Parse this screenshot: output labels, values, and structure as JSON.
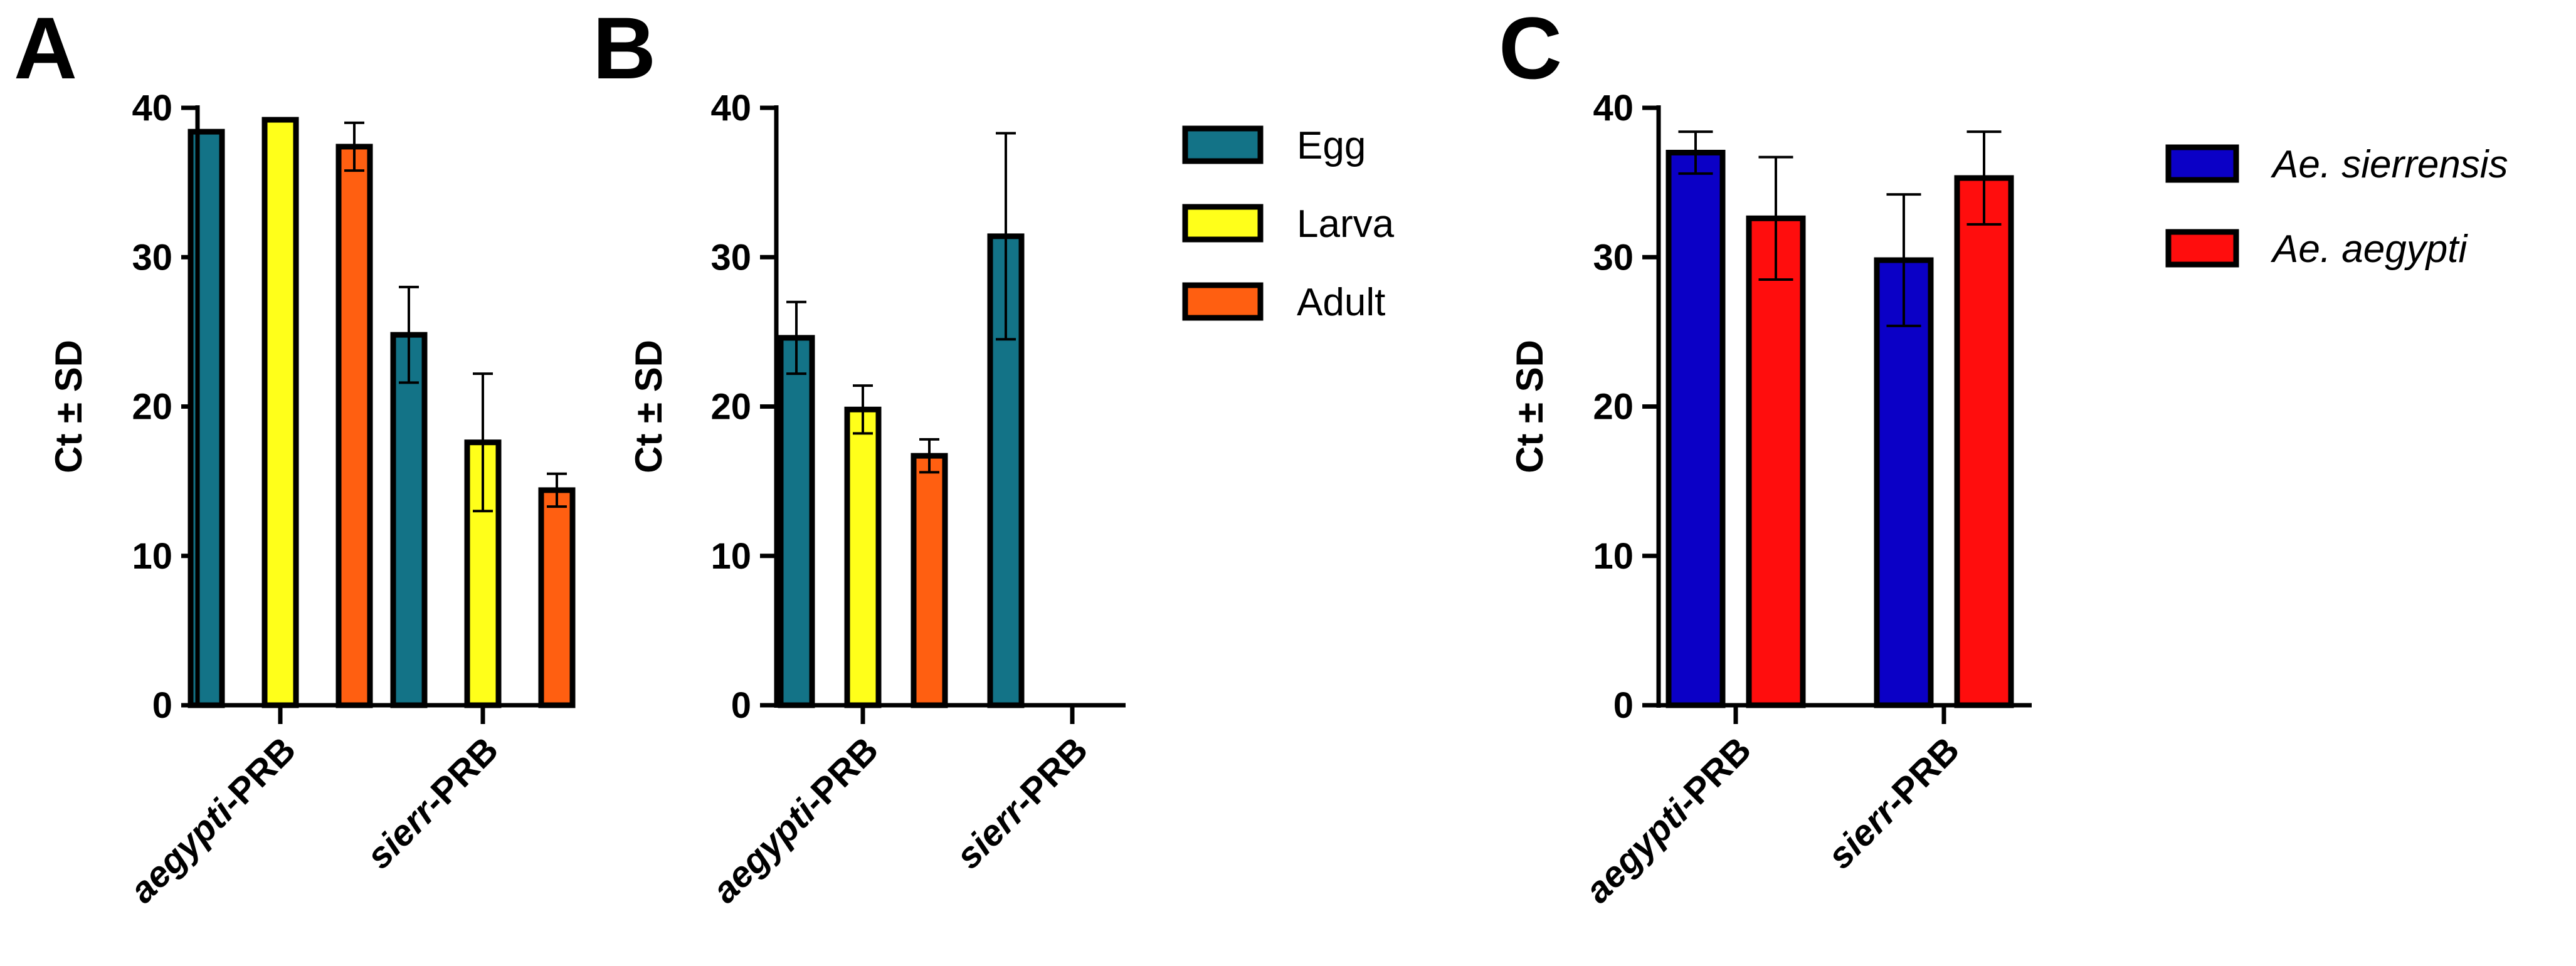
{
  "chart_data": [
    {
      "panel": "A",
      "type": "bar",
      "ylabel": "Ct ± SD",
      "ylim": [
        0,
        40
      ],
      "yticks": [
        "0",
        "10",
        "20",
        "30",
        "40"
      ],
      "categories": [
        {
          "italic": "aegypti",
          "rest": "-PRB"
        },
        {
          "italic": "sierr",
          "rest": "-PRB"
        }
      ],
      "series": [
        {
          "name": "Egg",
          "color": "#137387",
          "values": [
            38.4,
            24.8
          ],
          "errors": [
            0,
            3.2
          ]
        },
        {
          "name": "Larva",
          "color": "#ffff1a",
          "values": [
            39.2,
            17.6
          ],
          "errors": [
            0,
            4.6
          ]
        },
        {
          "name": "Adult",
          "color": "#ff5f11",
          "values": [
            37.4,
            14.4
          ],
          "errors": [
            1.6,
            1.1
          ]
        }
      ]
    },
    {
      "panel": "B",
      "type": "bar",
      "ylabel": "Ct ± SD",
      "ylim": [
        0,
        40
      ],
      "yticks": [
        "0",
        "10",
        "20",
        "30",
        "40"
      ],
      "categories": [
        {
          "italic": "aegypti",
          "rest": "-PRB"
        },
        {
          "italic": "sierr",
          "rest": "-PRB"
        }
      ],
      "series": [
        {
          "name": "Egg",
          "color": "#137387",
          "values": [
            24.6,
            31.4
          ],
          "errors": [
            2.4,
            6.9
          ]
        },
        {
          "name": "Larva",
          "color": "#ffff1a",
          "values": [
            19.8,
            null
          ],
          "errors": [
            1.6,
            null
          ]
        },
        {
          "name": "Adult",
          "color": "#ff5f11",
          "values": [
            16.7,
            null
          ],
          "errors": [
            1.1,
            null
          ]
        }
      ],
      "legend": [
        "Egg",
        "Larva",
        "Adult"
      ]
    },
    {
      "panel": "C",
      "type": "bar",
      "ylabel": "Ct ± SD",
      "ylim": [
        0,
        40
      ],
      "yticks": [
        "0",
        "10",
        "20",
        "30",
        "40"
      ],
      "categories": [
        {
          "italic": "aegypti",
          "rest": "-PRB"
        },
        {
          "italic": "sierr",
          "rest": "-PRB"
        }
      ],
      "series": [
        {
          "name": "Ae. sierrensis",
          "color": "#0b00c6",
          "values": [
            37.0,
            29.8
          ],
          "errors": [
            1.4,
            4.4
          ]
        },
        {
          "name": "Ae. aegypti",
          "color": "#ff0d0d",
          "values": [
            32.6,
            35.3
          ],
          "errors": [
            4.1,
            3.1
          ]
        }
      ],
      "legend": [
        "Ae. sierrensis",
        "Ae. aegypti"
      ]
    }
  ]
}
